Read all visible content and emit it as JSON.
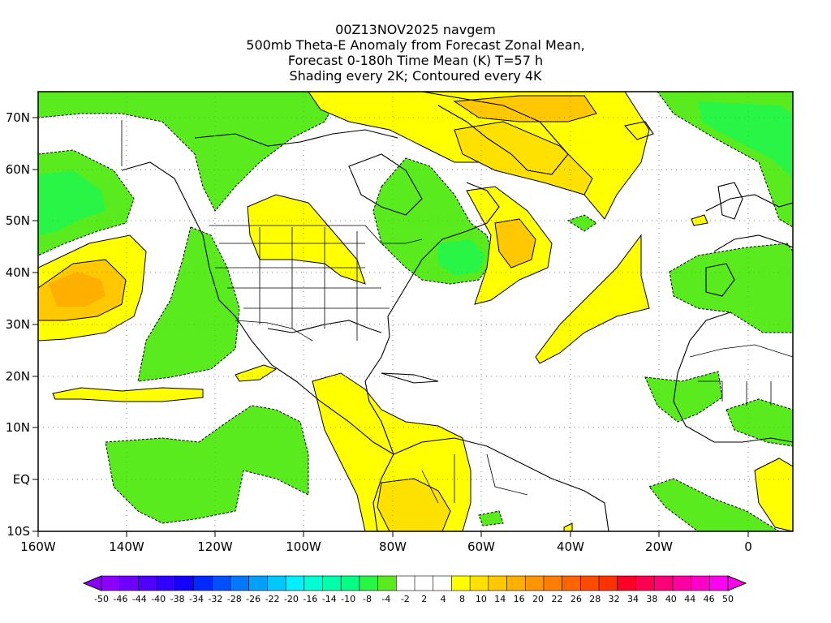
{
  "title": {
    "line1": "00Z13NOV2025 navgem",
    "line2": "500mb Theta-E Anomaly from Forecast Zonal Mean,",
    "line3": "Forecast 0-180h Time Mean (K) T=57 h",
    "line4": "Shading every 2K; Contoured every 4K"
  },
  "axes": {
    "lon_labels": [
      "160W",
      "140W",
      "120W",
      "100W",
      "80W",
      "60W",
      "40W",
      "20W",
      "0"
    ],
    "lat_labels": [
      "70N",
      "60N",
      "50N",
      "40N",
      "30N",
      "20N",
      "10N",
      "EQ",
      "10S"
    ],
    "lon_range": [
      -160,
      10
    ],
    "lat_range": [
      -10,
      75
    ]
  },
  "colorbar": {
    "labels": [
      "-50",
      "-46",
      "-44",
      "-40",
      "-38",
      "-34",
      "-32",
      "-28",
      "-26",
      "-22",
      "-20",
      "-16",
      "-14",
      "-10",
      "-8",
      "-4",
      "-2",
      "2",
      "4",
      "8",
      "10",
      "14",
      "16",
      "20",
      "22",
      "26",
      "28",
      "32",
      "34",
      "38",
      "40",
      "44",
      "46",
      "50"
    ],
    "colors": [
      "#8c00ff",
      "#6e00ff",
      "#5000ff",
      "#3200ff",
      "#1400ff",
      "#0028ff",
      "#0050ff",
      "#0078ff",
      "#00a0ff",
      "#00c8ff",
      "#00f0ff",
      "#00ffd2",
      "#00ffaa",
      "#00ff82",
      "#28f546",
      "#5aeb1e",
      "#ffffff",
      "#ffffff",
      "#ffffff",
      "#ffff00",
      "#ffe100",
      "#ffc800",
      "#ffaf00",
      "#ff9600",
      "#ff7d00",
      "#ff6400",
      "#ff4b00",
      "#ff3200",
      "#ff0028",
      "#ff0050",
      "#ff0078",
      "#ff00a0",
      "#ff00c8",
      "#ff00f0"
    ]
  },
  "colors": {
    "green_light": "#5aeb1e",
    "green_mid": "#28f546",
    "green_dark": "#00ff82",
    "yellow": "#ffff00",
    "yellow_orange": "#ffe100",
    "orange": "#ffc800",
    "orange_dark": "#ffaf00"
  }
}
